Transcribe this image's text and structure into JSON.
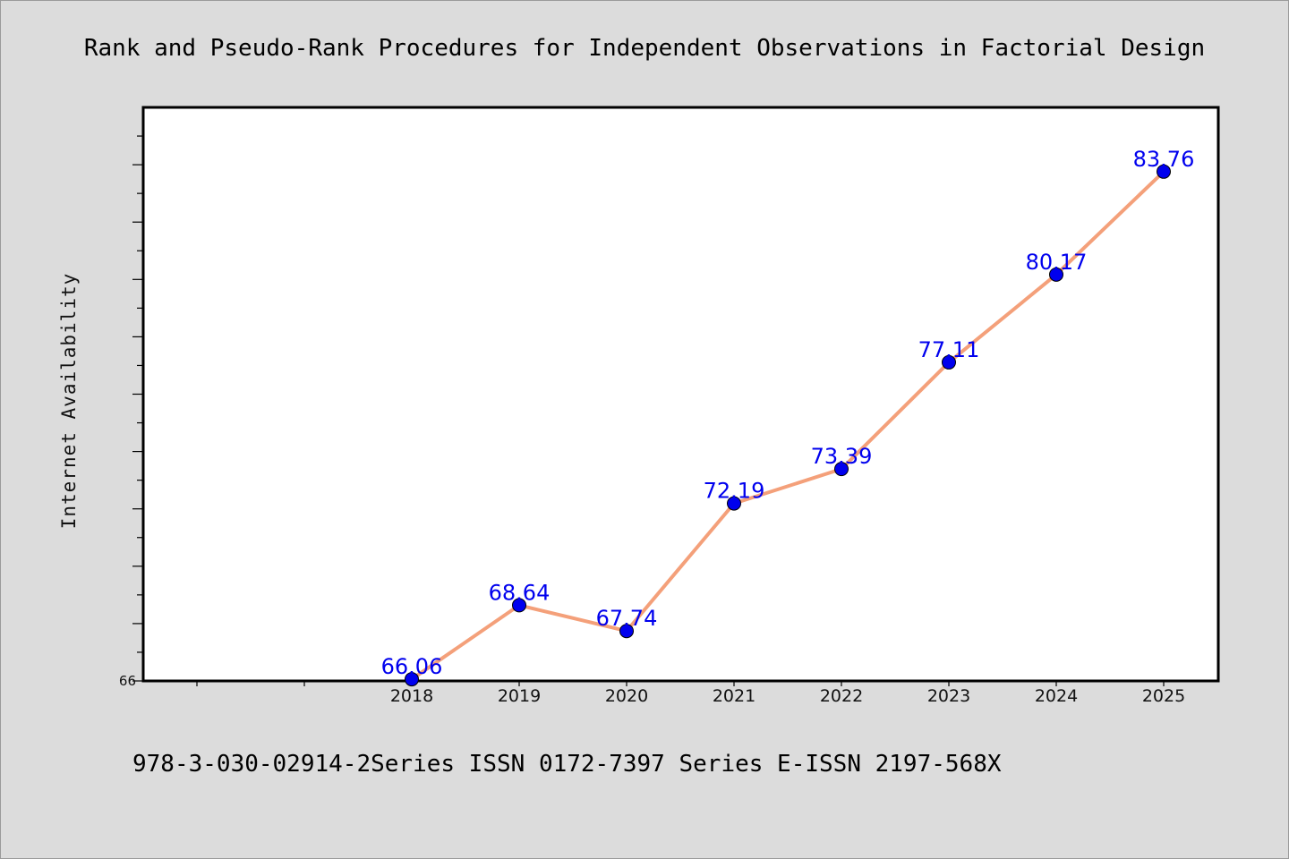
{
  "chart_data": {
    "type": "line",
    "title": "Rank and Pseudo-Rank Procedures for Independent Observations in Factorial Design",
    "xlabel": "",
    "ylabel": "Internet Availability",
    "categories": [
      "2018",
      "2019",
      "2020",
      "2021",
      "2022",
      "2023",
      "2024",
      "2025"
    ],
    "series": [
      {
        "values": [
          66.06,
          68.64,
          67.74,
          72.19,
          73.39,
          77.11,
          80.17,
          83.76
        ],
        "labels": [
          "66.06",
          "68.64",
          "67.74",
          "72.19",
          "73.39",
          "77.11",
          "80.17",
          "83.76"
        ]
      }
    ],
    "yticks": [
      "66"
    ],
    "ylim": [
      66,
      86
    ],
    "grid": false,
    "line_color": "#f4a07a",
    "marker_color": "#0000ee",
    "label_color": "#0000ee"
  },
  "footer": "978-3-030-02914-2Series ISSN 0172-7397 Series E-ISSN 2197-568X"
}
